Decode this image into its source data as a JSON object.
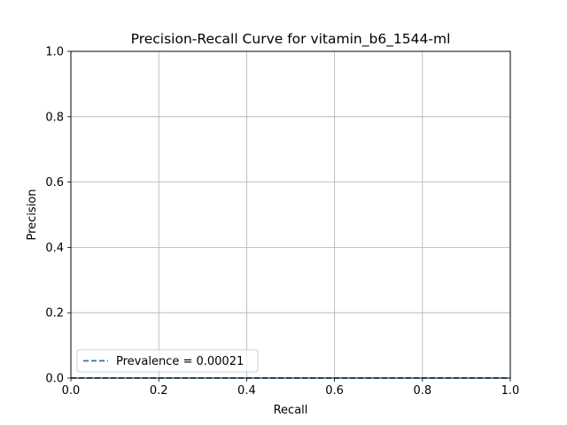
{
  "chart_data": {
    "type": "line",
    "title": "Precision-Recall Curve for vitamin_b6_1544-ml",
    "xlabel": "Recall",
    "ylabel": "Precision",
    "xlim": [
      0.0,
      1.0
    ],
    "ylim": [
      0.0,
      1.0
    ],
    "xticks": [
      "0.0",
      "0.2",
      "0.4",
      "0.6",
      "0.8",
      "1.0"
    ],
    "yticks": [
      "0.0",
      "0.2",
      "0.4",
      "0.6",
      "0.8",
      "1.0"
    ],
    "grid": true,
    "legend_position": "lower-left",
    "series": [
      {
        "name": "Prevalence = 0.00021",
        "style": "dashed",
        "color": "#1f77b4",
        "x": [
          0.0,
          1.0
        ],
        "y": [
          0.00021,
          0.00021
        ]
      }
    ]
  }
}
